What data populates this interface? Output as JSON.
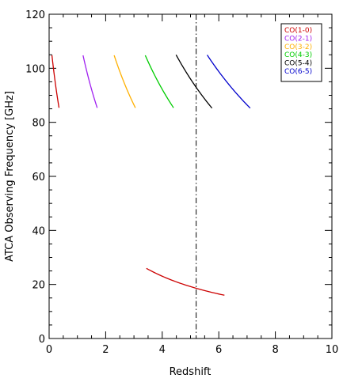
{
  "chart_data": {
    "type": "line",
    "title": "",
    "xlabel": "Redshift",
    "ylabel": "ATCA Observing Frequency [GHz]",
    "xlim": [
      0,
      10
    ],
    "ylim": [
      0,
      120
    ],
    "x_ticks": [
      "0",
      "2",
      "4",
      "6",
      "8",
      "10"
    ],
    "y_ticks": [
      "0",
      "20",
      "40",
      "60",
      "80",
      "100",
      "120"
    ],
    "grid": false,
    "legend_position": "top-right",
    "series": [
      {
        "name": "CO(1-0)",
        "color": "#cc0000",
        "rest_ghz": 115.27,
        "segments": [
          {
            "z_start": 0.1,
            "z_end": 0.35
          },
          {
            "z_start": 3.44,
            "z_end": 6.2
          }
        ]
      },
      {
        "name": "CO(2-1)",
        "color": "#a020f0",
        "rest_ghz": 230.54,
        "segments": [
          {
            "z_start": 1.2,
            "z_end": 1.7
          }
        ]
      },
      {
        "name": "CO(3-2)",
        "color": "#ffb000",
        "rest_ghz": 345.8,
        "segments": [
          {
            "z_start": 2.3,
            "z_end": 3.05
          }
        ]
      },
      {
        "name": "CO(4-3)",
        "color": "#00cc00",
        "rest_ghz": 461.04,
        "segments": [
          {
            "z_start": 3.4,
            "z_end": 4.4
          }
        ]
      },
      {
        "name": "CO(5-4)",
        "color": "#000000",
        "rest_ghz": 576.27,
        "segments": [
          {
            "z_start": 4.49,
            "z_end": 5.76
          }
        ]
      },
      {
        "name": "CO(6-5)",
        "color": "#0000cc",
        "rest_ghz": 691.47,
        "segments": [
          {
            "z_start": 5.59,
            "z_end": 7.11
          }
        ]
      }
    ],
    "annotations": [
      {
        "type": "vertical-dash-dot-line",
        "x": 5.2,
        "color": "#000000"
      }
    ]
  }
}
